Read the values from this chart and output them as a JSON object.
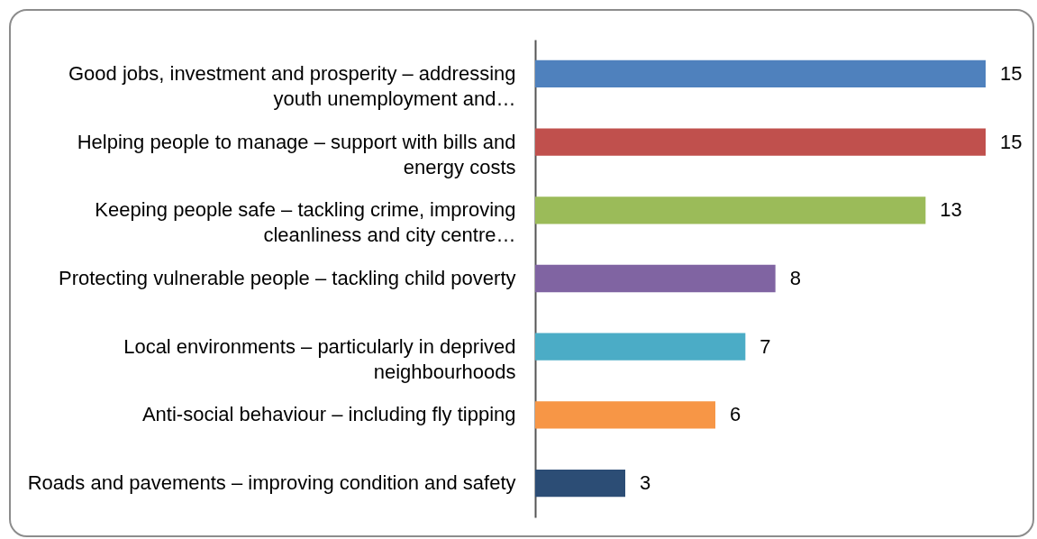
{
  "chart_data": {
    "type": "bar",
    "orientation": "horizontal",
    "categories": [
      "Good jobs, investment and prosperity – addressing youth unemployment and…",
      "Helping people to manage – support with bills and energy costs",
      "Keeping people safe – tackling crime, improving cleanliness and city centre…",
      "Protecting vulnerable people – tackling child poverty",
      "Local environments – particularly in deprived neighbourhoods",
      "Anti-social behaviour – including fly tipping",
      "Roads and pavements – improving condition and safety"
    ],
    "values": [
      15,
      15,
      13,
      8,
      7,
      6,
      3
    ],
    "colors": [
      "#4f81bd",
      "#c0504d",
      "#9bbb59",
      "#8064a2",
      "#4bacc6",
      "#f79646",
      "#2c4d75"
    ],
    "data_labels": true,
    "legend": false
  }
}
